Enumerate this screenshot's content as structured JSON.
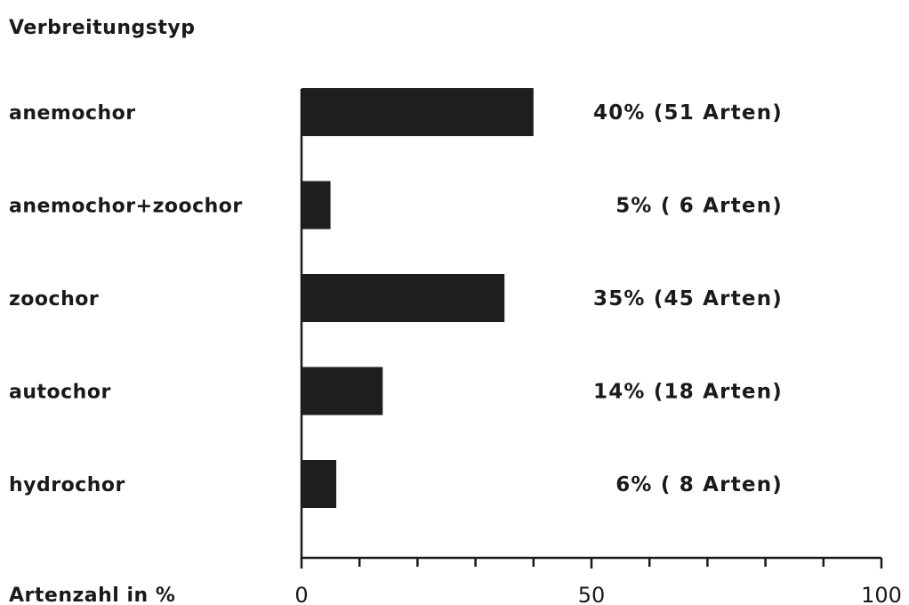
{
  "chart_data": {
    "type": "bar",
    "orientation": "horizontal",
    "title": "",
    "category_axis_heading": "Verbreitungstyp",
    "xlabel": "Artenzahl in %",
    "ylabel": "",
    "categories": [
      "anemochor",
      "anemochor+zoochor",
      "zoochor",
      "autochor",
      "hydrochor"
    ],
    "values": [
      40,
      5,
      35,
      14,
      6
    ],
    "data_labels": [
      "40% (51 Arten)",
      "5% ( 6 Arten)",
      "35% (45 Arten)",
      "14% (18 Arten)",
      "6% ( 8 Arten)"
    ],
    "xlim": [
      0,
      100
    ],
    "x_ticks": [
      0,
      50,
      100
    ],
    "x_minor_tick_step": 10,
    "grid": false,
    "legend": "none",
    "colors": {
      "bar": "#1e1e1e",
      "text": "#1a1a1a",
      "background": "#ffffff"
    }
  }
}
